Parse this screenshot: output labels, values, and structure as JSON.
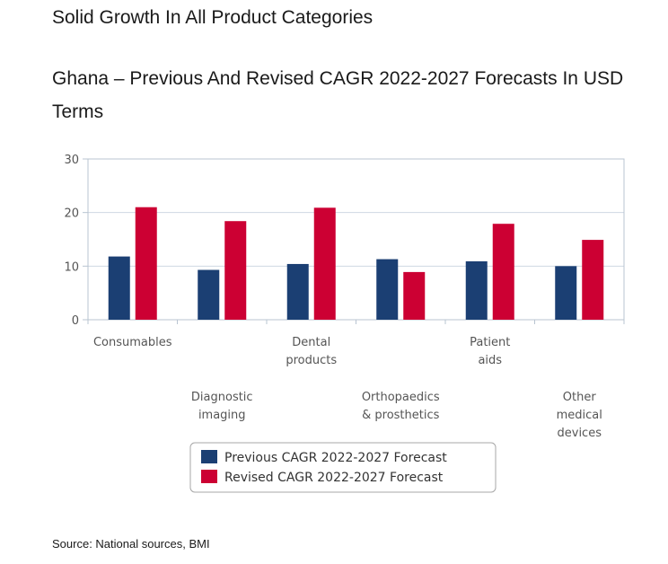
{
  "section_heading": "Solid Growth In All Product Categories",
  "chart_heading": "Ghana – Previous And Revised CAGR 2022-2027 Forecasts In USD Terms",
  "source": "Source: National sources, BMI",
  "colors": {
    "previous": "#1b3f73",
    "revised": "#cc0033",
    "grid": "#cfd8e3",
    "axis": "#b9c4d1"
  },
  "chart_data": {
    "type": "bar",
    "categories": [
      [
        "Consumables"
      ],
      [
        "Diagnostic",
        "imaging"
      ],
      [
        "Dental",
        "products"
      ],
      [
        "Orthopaedics",
        "& prosthetics"
      ],
      [
        "Patient",
        "aids"
      ],
      [
        "Other",
        "medical",
        "devices"
      ]
    ],
    "series": [
      {
        "name": "Previous CAGR 2022-2027 Forecast",
        "values": [
          11.8,
          9.3,
          10.4,
          11.3,
          10.9,
          10.0
        ]
      },
      {
        "name": "Revised CAGR 2022-2027 Forecast",
        "values": [
          21.0,
          18.4,
          20.9,
          8.9,
          17.9,
          14.9
        ]
      }
    ],
    "ylim": [
      0,
      30
    ],
    "yticks": [
      0,
      10,
      20,
      30
    ],
    "grid": true,
    "legend": "bottom"
  }
}
